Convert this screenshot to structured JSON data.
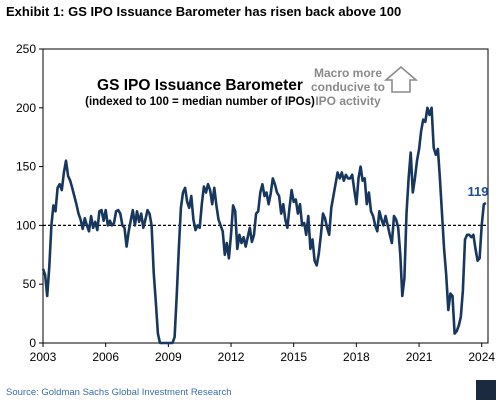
{
  "header": {
    "exhibit_title": "Exhibit 1: GS IPO Issuance Barometer has risen back above 100"
  },
  "chart_data": {
    "type": "line",
    "title": "GS IPO Issuance Barometer",
    "subtitle": "(indexed to 100 = median number of IPOs)",
    "xlabel": "",
    "ylabel": "",
    "xlim": [
      2003,
      2024.3
    ],
    "ylim": [
      0,
      250
    ],
    "yticks": [
      0,
      50,
      100,
      150,
      200,
      250
    ],
    "xticks": [
      2003,
      2006,
      2009,
      2012,
      2015,
      2018,
      2021,
      2024
    ],
    "grid": false,
    "reference_line": {
      "y": 100,
      "style": "dashed"
    },
    "annotation": {
      "lines": [
        "Macro more",
        "conducive to",
        "IPO activity"
      ],
      "arrow": "up"
    },
    "end_label": "119",
    "series": [
      {
        "values": [
          [
            2003.0,
            63
          ],
          [
            2003.1,
            58
          ],
          [
            2003.2,
            40
          ],
          [
            2003.3,
            65
          ],
          [
            2003.4,
            100
          ],
          [
            2003.5,
            117
          ],
          [
            2003.6,
            112
          ],
          [
            2003.7,
            132
          ],
          [
            2003.8,
            135
          ],
          [
            2003.9,
            130
          ],
          [
            2004.0,
            145
          ],
          [
            2004.1,
            155
          ],
          [
            2004.2,
            142
          ],
          [
            2004.3,
            138
          ],
          [
            2004.4,
            132
          ],
          [
            2004.5,
            125
          ],
          [
            2004.6,
            118
          ],
          [
            2004.7,
            110
          ],
          [
            2004.8,
            105
          ],
          [
            2004.9,
            97
          ],
          [
            2005.0,
            106
          ],
          [
            2005.1,
            100
          ],
          [
            2005.2,
            95
          ],
          [
            2005.3,
            108
          ],
          [
            2005.4,
            98
          ],
          [
            2005.5,
            103
          ],
          [
            2005.6,
            96
          ],
          [
            2005.7,
            112
          ],
          [
            2005.8,
            113
          ],
          [
            2005.9,
            104
          ],
          [
            2006.0,
            113
          ],
          [
            2006.1,
            100
          ],
          [
            2006.2,
            104
          ],
          [
            2006.3,
            100
          ],
          [
            2006.4,
            102
          ],
          [
            2006.5,
            112
          ],
          [
            2006.6,
            113
          ],
          [
            2006.7,
            110
          ],
          [
            2006.8,
            100
          ],
          [
            2006.9,
            98
          ],
          [
            2007.0,
            82
          ],
          [
            2007.1,
            95
          ],
          [
            2007.2,
            104
          ],
          [
            2007.3,
            113
          ],
          [
            2007.4,
            100
          ],
          [
            2007.5,
            112
          ],
          [
            2007.6,
            103
          ],
          [
            2007.7,
            110
          ],
          [
            2007.8,
            98
          ],
          [
            2007.9,
            105
          ],
          [
            2008.0,
            113
          ],
          [
            2008.1,
            110
          ],
          [
            2008.2,
            100
          ],
          [
            2008.3,
            60
          ],
          [
            2008.4,
            35
          ],
          [
            2008.5,
            8
          ],
          [
            2008.6,
            0
          ],
          [
            2008.7,
            0
          ],
          [
            2008.8,
            0
          ],
          [
            2008.9,
            0
          ],
          [
            2009.0,
            0
          ],
          [
            2009.1,
            0
          ],
          [
            2009.2,
            0
          ],
          [
            2009.3,
            5
          ],
          [
            2009.4,
            40
          ],
          [
            2009.5,
            80
          ],
          [
            2009.6,
            115
          ],
          [
            2009.7,
            128
          ],
          [
            2009.8,
            132
          ],
          [
            2009.9,
            120
          ],
          [
            2010.0,
            115
          ],
          [
            2010.1,
            125
          ],
          [
            2010.2,
            105
          ],
          [
            2010.3,
            96
          ],
          [
            2010.4,
            100
          ],
          [
            2010.5,
            98
          ],
          [
            2010.6,
            118
          ],
          [
            2010.7,
            133
          ],
          [
            2010.8,
            128
          ],
          [
            2010.9,
            135
          ],
          [
            2011.0,
            130
          ],
          [
            2011.1,
            118
          ],
          [
            2011.2,
            132
          ],
          [
            2011.3,
            117
          ],
          [
            2011.4,
            105
          ],
          [
            2011.5,
            100
          ],
          [
            2011.6,
            95
          ],
          [
            2011.7,
            75
          ],
          [
            2011.8,
            85
          ],
          [
            2011.9,
            72
          ],
          [
            2012.0,
            92
          ],
          [
            2012.1,
            117
          ],
          [
            2012.2,
            112
          ],
          [
            2012.3,
            80
          ],
          [
            2012.4,
            92
          ],
          [
            2012.5,
            85
          ],
          [
            2012.6,
            90
          ],
          [
            2012.7,
            82
          ],
          [
            2012.8,
            90
          ],
          [
            2012.9,
            98
          ],
          [
            2013.0,
            86
          ],
          [
            2013.1,
            92
          ],
          [
            2013.2,
            110
          ],
          [
            2013.3,
            112
          ],
          [
            2013.4,
            128
          ],
          [
            2013.5,
            135
          ],
          [
            2013.6,
            125
          ],
          [
            2013.7,
            128
          ],
          [
            2013.8,
            118
          ],
          [
            2013.9,
            127
          ],
          [
            2014.0,
            140
          ],
          [
            2014.1,
            135
          ],
          [
            2014.2,
            128
          ],
          [
            2014.3,
            125
          ],
          [
            2014.4,
            110
          ],
          [
            2014.5,
            118
          ],
          [
            2014.6,
            105
          ],
          [
            2014.7,
            98
          ],
          [
            2014.8,
            115
          ],
          [
            2014.9,
            130
          ],
          [
            2015.0,
            120
          ],
          [
            2015.1,
            122
          ],
          [
            2015.2,
            110
          ],
          [
            2015.3,
            118
          ],
          [
            2015.4,
            100
          ],
          [
            2015.5,
            102
          ],
          [
            2015.6,
            92
          ],
          [
            2015.7,
            108
          ],
          [
            2015.8,
            80
          ],
          [
            2015.9,
            88
          ],
          [
            2016.0,
            70
          ],
          [
            2016.1,
            66
          ],
          [
            2016.2,
            76
          ],
          [
            2016.3,
            92
          ],
          [
            2016.4,
            110
          ],
          [
            2016.5,
            106
          ],
          [
            2016.6,
            98
          ],
          [
            2016.7,
            92
          ],
          [
            2016.8,
            115
          ],
          [
            2016.9,
            125
          ],
          [
            2017.0,
            135
          ],
          [
            2017.1,
            145
          ],
          [
            2017.2,
            140
          ],
          [
            2017.3,
            145
          ],
          [
            2017.4,
            138
          ],
          [
            2017.5,
            143
          ],
          [
            2017.6,
            140
          ],
          [
            2017.7,
            140
          ],
          [
            2017.8,
            143
          ],
          [
            2017.9,
            130
          ],
          [
            2018.0,
            118
          ],
          [
            2018.1,
            140
          ],
          [
            2018.2,
            150
          ],
          [
            2018.3,
            138
          ],
          [
            2018.4,
            140
          ],
          [
            2018.5,
            118
          ],
          [
            2018.6,
            128
          ],
          [
            2018.7,
            112
          ],
          [
            2018.8,
            108
          ],
          [
            2018.9,
            100
          ],
          [
            2019.0,
            95
          ],
          [
            2019.1,
            112
          ],
          [
            2019.2,
            105
          ],
          [
            2019.3,
            100
          ],
          [
            2019.4,
            108
          ],
          [
            2019.5,
            100
          ],
          [
            2019.6,
            92
          ],
          [
            2019.7,
            85
          ],
          [
            2019.8,
            108
          ],
          [
            2019.9,
            105
          ],
          [
            2020.0,
            98
          ],
          [
            2020.1,
            75
          ],
          [
            2020.2,
            40
          ],
          [
            2020.3,
            55
          ],
          [
            2020.4,
            110
          ],
          [
            2020.5,
            140
          ],
          [
            2020.6,
            162
          ],
          [
            2020.7,
            128
          ],
          [
            2020.8,
            140
          ],
          [
            2020.9,
            155
          ],
          [
            2021.0,
            165
          ],
          [
            2021.1,
            180
          ],
          [
            2021.2,
            190
          ],
          [
            2021.3,
            188
          ],
          [
            2021.4,
            200
          ],
          [
            2021.5,
            194
          ],
          [
            2021.6,
            200
          ],
          [
            2021.7,
            166
          ],
          [
            2021.8,
            160
          ],
          [
            2021.9,
            165
          ],
          [
            2022.0,
            140
          ],
          [
            2022.1,
            110
          ],
          [
            2022.2,
            80
          ],
          [
            2022.3,
            58
          ],
          [
            2022.4,
            28
          ],
          [
            2022.5,
            42
          ],
          [
            2022.6,
            40
          ],
          [
            2022.7,
            8
          ],
          [
            2022.8,
            10
          ],
          [
            2022.9,
            15
          ],
          [
            2023.0,
            22
          ],
          [
            2023.1,
            45
          ],
          [
            2023.2,
            88
          ],
          [
            2023.3,
            92
          ],
          [
            2023.4,
            92
          ],
          [
            2023.5,
            90
          ],
          [
            2023.6,
            92
          ],
          [
            2023.7,
            80
          ],
          [
            2023.8,
            70
          ],
          [
            2023.9,
            72
          ],
          [
            2024.0,
            100
          ],
          [
            2024.1,
            118
          ],
          [
            2024.2,
            119
          ]
        ]
      }
    ]
  },
  "source": "Source: Goldman Sachs Global Investment Research",
  "colors": {
    "line": "#17375e",
    "reference": "#000000",
    "end_label": "#1f4e9a",
    "arrow": "#8a8a8a",
    "source_text": "#3a6ea5"
  }
}
